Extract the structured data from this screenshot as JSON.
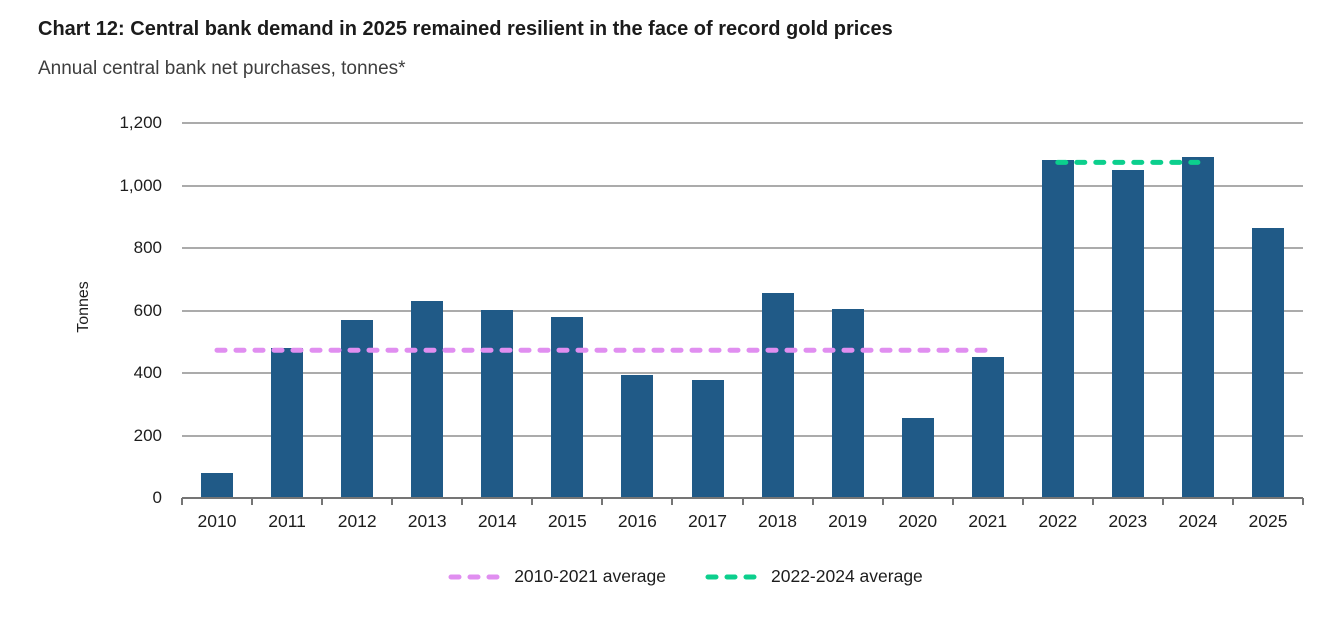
{
  "header": {
    "title": "Chart 12: Central bank demand in 2025 remained resilient in the face of record gold prices",
    "subtitle": "Annual central bank net purchases, tonnes*"
  },
  "chart_data": {
    "type": "bar",
    "title": "Chart 12: Central bank demand in 2025 remained resilient in the face of record gold prices",
    "subtitle": "Annual central bank net purchases, tonnes*",
    "categories": [
      "2010",
      "2011",
      "2012",
      "2013",
      "2014",
      "2015",
      "2016",
      "2017",
      "2018",
      "2019",
      "2020",
      "2021",
      "2022",
      "2023",
      "2024",
      "2025"
    ],
    "values": [
      79,
      481,
      569,
      630,
      601,
      580,
      395,
      379,
      656,
      605,
      255,
      450,
      1082,
      1051,
      1090,
      865
    ],
    "xlabel": "",
    "ylabel": "Tonnes",
    "ylim": [
      0,
      1200
    ],
    "yticks": [
      0,
      200,
      400,
      600,
      800,
      1000,
      1200
    ],
    "ytick_labels": [
      "0",
      "200",
      "400",
      "600",
      "800",
      "1,000",
      "1,200"
    ],
    "grid": "horizontal",
    "legend_position": "bottom",
    "bar_color": "#205a87",
    "grid_color": "#ababab",
    "axis_color": "#757575",
    "reference_lines": [
      {
        "label": "2010-2021 average",
        "value": 473,
        "color": "#e08ef0",
        "span": [
          "2010",
          "2021"
        ]
      },
      {
        "label": "2022-2024 average",
        "value": 1074,
        "color": "#0ccf8d",
        "span": [
          "2022",
          "2024"
        ]
      }
    ]
  }
}
